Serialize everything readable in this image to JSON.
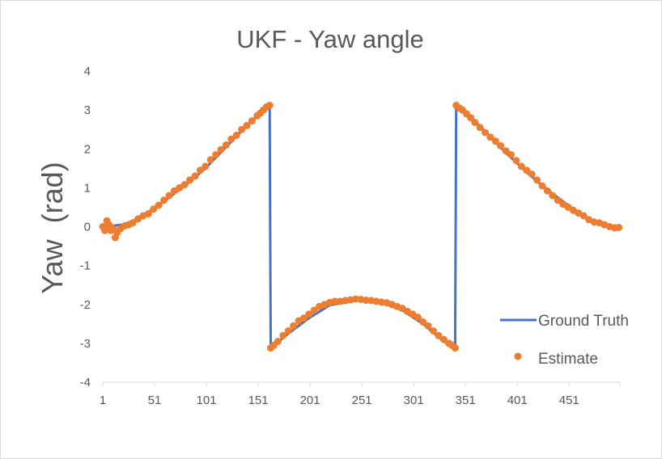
{
  "chart_data": {
    "type": "line",
    "title": "UKF - Yaw angle",
    "xlabel": "",
    "ylabel": "Yaw  (rad)",
    "xlim": [
      1,
      500
    ],
    "ylim": [
      -4,
      4
    ],
    "x_ticks": [
      "1",
      "51",
      "101",
      "151",
      "201",
      "251",
      "301",
      "351",
      "401",
      "451"
    ],
    "y_ticks": [
      "4",
      "3",
      "2",
      "1",
      "0",
      "-1",
      "-2",
      "-3",
      "-4"
    ],
    "grid": false,
    "legend_position": "right",
    "colors": {
      "ground_truth": "#4472c4",
      "estimate": "#ed7d31"
    },
    "series": [
      {
        "name": "Ground Truth",
        "style": "line",
        "x": [
          1,
          5,
          10,
          20,
          30,
          40,
          60,
          80,
          100,
          120,
          140,
          155,
          162,
          163,
          180,
          200,
          220,
          250,
          270,
          290,
          310,
          330,
          341,
          342,
          350,
          370,
          390,
          410,
          430,
          450,
          470,
          490,
          500
        ],
        "y": [
          0,
          0,
          0.02,
          0.05,
          0.15,
          0.28,
          0.65,
          1.05,
          1.5,
          2.05,
          2.6,
          2.98,
          3.12,
          -3.12,
          -2.75,
          -2.35,
          -2.02,
          -1.88,
          -1.94,
          -2.15,
          -2.5,
          -2.95,
          -3.12,
          3.12,
          2.95,
          2.45,
          1.9,
          1.4,
          0.95,
          0.55,
          0.2,
          0.03,
          0
        ]
      },
      {
        "name": "Estimate",
        "style": "marker",
        "x": [
          1,
          3,
          5,
          7,
          9,
          11,
          13,
          15,
          18,
          22,
          26,
          30,
          35,
          40,
          45,
          50,
          55,
          60,
          65,
          70,
          75,
          80,
          85,
          90,
          95,
          100,
          105,
          110,
          115,
          120,
          125,
          130,
          135,
          140,
          145,
          150,
          153,
          156,
          159,
          162,
          163,
          166,
          170,
          175,
          180,
          185,
          190,
          195,
          200,
          205,
          210,
          215,
          220,
          225,
          230,
          235,
          240,
          245,
          250,
          255,
          260,
          265,
          270,
          275,
          280,
          285,
          290,
          295,
          300,
          305,
          310,
          315,
          320,
          325,
          330,
          335,
          338,
          341,
          342,
          345,
          348,
          352,
          356,
          360,
          365,
          370,
          375,
          380,
          385,
          390,
          395,
          400,
          405,
          410,
          415,
          420,
          425,
          430,
          435,
          440,
          445,
          450,
          455,
          460,
          465,
          470,
          475,
          480,
          485,
          490,
          495,
          499
        ],
        "y": [
          0,
          -0.1,
          0.15,
          0.05,
          -0.1,
          -0.05,
          -0.28,
          -0.15,
          -0.05,
          0.02,
          0.05,
          0.1,
          0.2,
          0.28,
          0.33,
          0.45,
          0.55,
          0.68,
          0.8,
          0.92,
          1.0,
          1.08,
          1.2,
          1.3,
          1.45,
          1.55,
          1.72,
          1.85,
          1.98,
          2.1,
          2.25,
          2.35,
          2.5,
          2.6,
          2.72,
          2.85,
          2.92,
          3.0,
          3.08,
          3.12,
          -3.12,
          -3.05,
          -2.95,
          -2.8,
          -2.68,
          -2.55,
          -2.42,
          -2.35,
          -2.25,
          -2.15,
          -2.05,
          -2.0,
          -1.95,
          -1.92,
          -1.92,
          -1.9,
          -1.88,
          -1.86,
          -1.87,
          -1.89,
          -1.9,
          -1.92,
          -1.94,
          -1.96,
          -2.0,
          -2.05,
          -2.1,
          -2.18,
          -2.25,
          -2.33,
          -2.45,
          -2.55,
          -2.68,
          -2.8,
          -2.9,
          -3.0,
          -3.05,
          -3.12,
          3.12,
          3.05,
          3.0,
          2.9,
          2.8,
          2.68,
          2.55,
          2.42,
          2.3,
          2.2,
          2.08,
          1.95,
          1.85,
          1.7,
          1.55,
          1.45,
          1.35,
          1.2,
          1.05,
          0.92,
          0.8,
          0.68,
          0.58,
          0.5,
          0.42,
          0.35,
          0.28,
          0.18,
          0.12,
          0.1,
          0.05,
          0.0,
          -0.03,
          -0.02
        ]
      }
    ]
  }
}
